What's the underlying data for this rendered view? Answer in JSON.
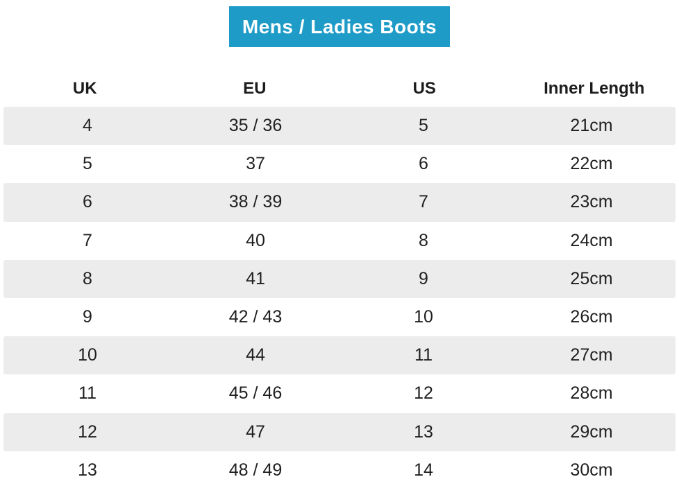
{
  "title": "Mens / Ladies Boots",
  "colors": {
    "banner_background": "#1e9bc7",
    "banner_text": "#ffffff",
    "row_alternate_background": "#ececec",
    "text": "#1f1f1f"
  },
  "size_chart": {
    "columns": [
      "UK",
      "EU",
      "US",
      "Inner Length"
    ],
    "rows": [
      [
        "4",
        "35 / 36",
        "5",
        "21cm"
      ],
      [
        "5",
        "37",
        "6",
        "22cm"
      ],
      [
        "6",
        "38 / 39",
        "7",
        "23cm"
      ],
      [
        "7",
        "40",
        "8",
        "24cm"
      ],
      [
        "8",
        "41",
        "9",
        "25cm"
      ],
      [
        "9",
        "42 / 43",
        "10",
        "26cm"
      ],
      [
        "10",
        "44",
        "11",
        "27cm"
      ],
      [
        "11",
        "45 / 46",
        "12",
        "28cm"
      ],
      [
        "12",
        "47",
        "13",
        "29cm"
      ],
      [
        "13",
        "48 / 49",
        "14",
        "30cm"
      ]
    ]
  }
}
